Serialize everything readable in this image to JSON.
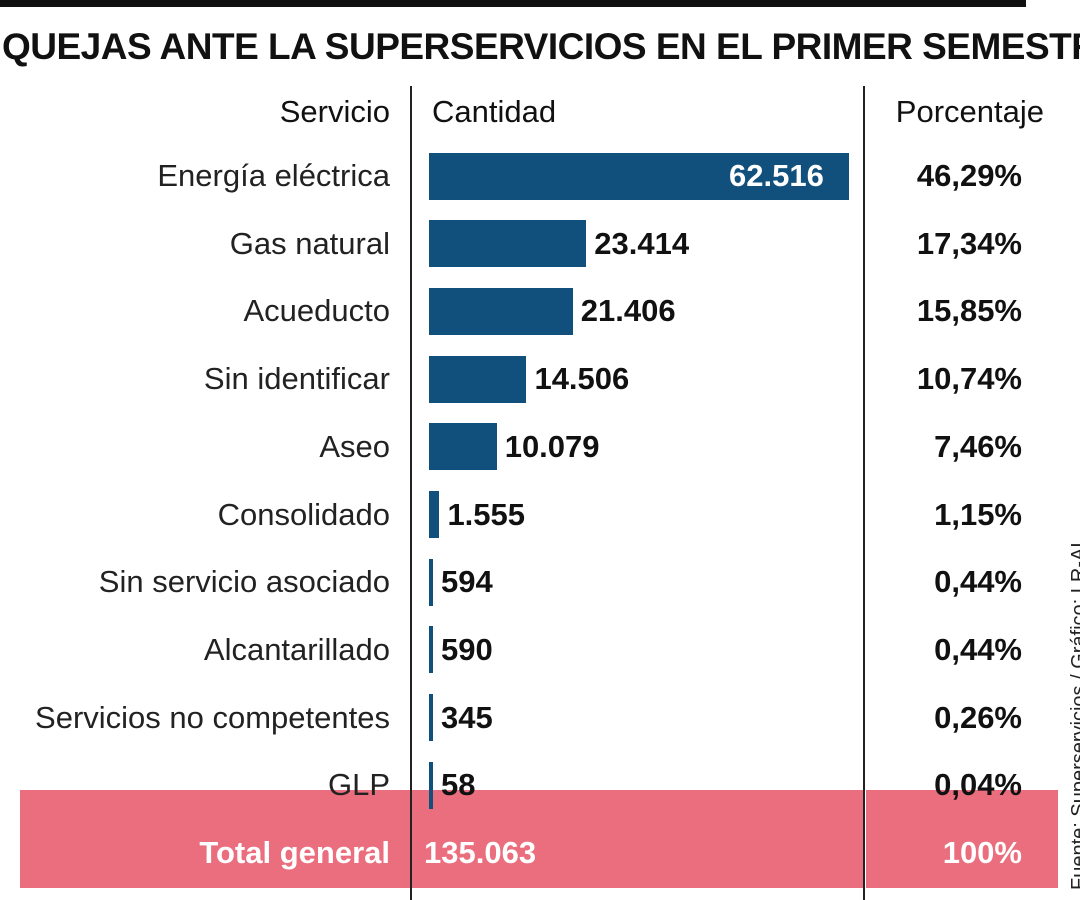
{
  "title": "QUEJAS ANTE LA SUPERSERVICIOS EN EL PRIMER SEMESTRE",
  "headers": {
    "service": "Servicio",
    "count": "Cantidad",
    "percent": "Porcentaje"
  },
  "colors": {
    "bar": "#11507c",
    "total_band": "#ea6e7d",
    "text": "#111111"
  },
  "chart_data": {
    "type": "bar",
    "orientation": "horizontal",
    "title": "QUEJAS ANTE LA SUPERSERVICIOS EN EL PRIMER SEMESTRE",
    "categories": [
      "Energía eléctrica",
      "Gas natural",
      "Acueducto",
      "Sin identificar",
      "Aseo",
      "Consolidado",
      "Sin servicio asociado",
      "Alcantarillado",
      "Servicios no competentes",
      "GLP"
    ],
    "values": [
      62516,
      23414,
      21406,
      14506,
      10079,
      1555,
      594,
      590,
      345,
      58
    ],
    "value_labels": [
      "62.516",
      "23.414",
      "21.406",
      "14.506",
      "10.079",
      "1.555",
      "594",
      "590",
      "345",
      "58"
    ],
    "percentages": [
      "46,29%",
      "17,34%",
      "15,85%",
      "10,74%",
      "7,46%",
      "1,15%",
      "0,44%",
      "0,44%",
      "0,26%",
      "0,04%"
    ],
    "xlim": [
      0,
      62516
    ],
    "grid": false
  },
  "total": {
    "label": "Total general",
    "value": "135.063",
    "percent": "100%"
  },
  "source": "Fuente: Superservicios / Gráfico: LR-AL"
}
